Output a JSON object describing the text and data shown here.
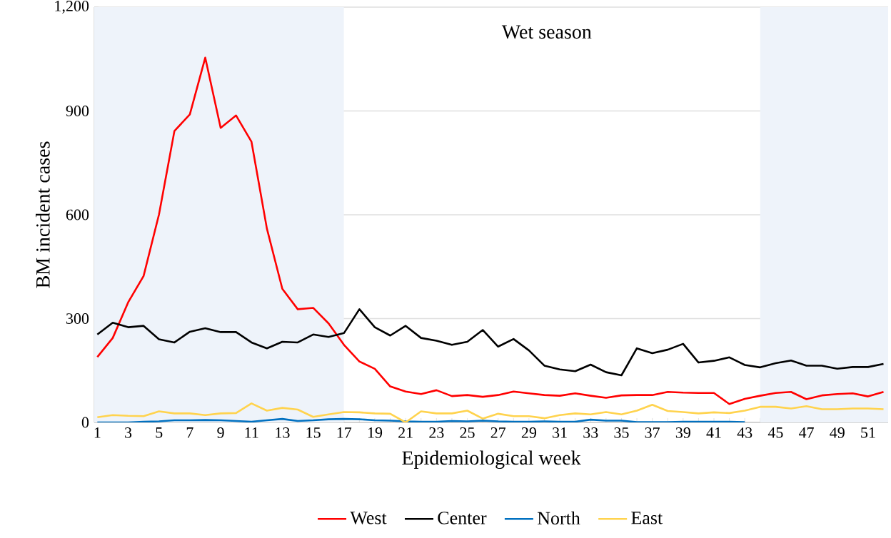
{
  "chart_data": {
    "type": "line",
    "xlabel": "Epidemiological week",
    "ylabel": "BM incident cases",
    "annotations": [
      "Wet season"
    ],
    "x": [
      1,
      2,
      3,
      4,
      5,
      6,
      7,
      8,
      9,
      10,
      11,
      12,
      13,
      14,
      15,
      16,
      17,
      18,
      19,
      20,
      21,
      22,
      23,
      24,
      25,
      26,
      27,
      28,
      29,
      30,
      31,
      32,
      33,
      34,
      35,
      36,
      37,
      38,
      39,
      40,
      41,
      42,
      43,
      44,
      45,
      46,
      47,
      48,
      49,
      50,
      51,
      52
    ],
    "series": [
      {
        "name": "West",
        "color": "#ff0000",
        "values": [
          189,
          244,
          347,
          423,
          601,
          842,
          890,
          1054,
          851,
          887,
          811,
          560,
          386,
          327,
          331,
          286,
          224,
          176,
          155,
          104,
          89,
          82,
          93,
          76,
          79,
          74,
          79,
          89,
          84,
          79,
          77,
          84,
          77,
          71,
          78,
          79,
          79,
          88,
          86,
          85,
          85,
          53,
          68,
          77,
          85,
          88,
          67,
          78,
          82,
          84,
          75,
          88
        ]
      },
      {
        "name": "Center",
        "color": "#000000",
        "values": [
          254,
          288,
          275,
          279,
          240,
          231,
          262,
          272,
          261,
          261,
          231,
          214,
          233,
          231,
          254,
          247,
          258,
          327,
          275,
          251,
          279,
          244,
          236,
          224,
          233,
          267,
          219,
          241,
          208,
          164,
          153,
          148,
          167,
          145,
          136,
          214,
          200,
          210,
          227,
          173,
          178,
          188,
          166,
          159,
          171,
          179,
          164,
          164,
          155,
          160,
          160,
          169
        ]
      },
      {
        "name": "North",
        "color": "#0070c0",
        "values": [
          0,
          0,
          0,
          2,
          3,
          6,
          6,
          7,
          6,
          4,
          2,
          6,
          10,
          4,
          6,
          9,
          10,
          9,
          6,
          5,
          3,
          2,
          2,
          4,
          3,
          5,
          3,
          2,
          2,
          3,
          2,
          2,
          8,
          5,
          5,
          1,
          1,
          1,
          2,
          2,
          2,
          2,
          1,
          null,
          null,
          null,
          null,
          null,
          null,
          null,
          null,
          null
        ]
      },
      {
        "name": "East",
        "color": "#ffd34e",
        "values": [
          15,
          21,
          19,
          18,
          32,
          26,
          26,
          21,
          26,
          27,
          55,
          34,
          42,
          37,
          16,
          23,
          30,
          29,
          26,
          25,
          0,
          32,
          26,
          26,
          34,
          11,
          25,
          18,
          18,
          12,
          21,
          26,
          23,
          30,
          23,
          34,
          51,
          33,
          30,
          26,
          29,
          27,
          34,
          45,
          45,
          40,
          47,
          38,
          38,
          40,
          40,
          38
        ]
      }
    ],
    "xlim": [
      0.8,
      52.3
    ],
    "ylim": [
      0,
      1200
    ],
    "xticks": [
      1,
      {
        "value": 2,
        "label": null
      },
      3,
      {
        "value": 4,
        "label": null
      },
      5,
      {
        "value": 6,
        "label": null
      },
      7,
      {
        "value": 8,
        "label": null
      },
      9,
      {
        "value": 10,
        "label": null
      },
      11,
      {
        "value": 12,
        "label": null
      },
      13,
      {
        "value": 14,
        "label": null
      },
      15,
      {
        "value": 16,
        "label": null
      },
      17,
      {
        "value": 18,
        "label": null
      },
      19,
      {
        "value": 20,
        "label": null
      },
      21,
      {
        "value": 22,
        "label": null
      },
      23,
      {
        "value": 24,
        "label": null
      },
      25,
      {
        "value": 26,
        "label": null
      },
      27,
      {
        "value": 28,
        "label": null
      },
      29,
      {
        "value": 30,
        "label": null
      },
      31,
      {
        "value": 32,
        "label": null
      },
      33,
      {
        "value": 34,
        "label": null
      },
      35,
      {
        "value": 36,
        "label": null
      },
      37,
      {
        "value": 38,
        "label": null
      },
      39,
      {
        "value": 40,
        "label": null
      },
      41,
      {
        "value": 42,
        "label": null
      },
      43,
      {
        "value": 44,
        "label": null
      },
      45,
      {
        "value": 46,
        "label": null
      },
      47,
      {
        "value": 48,
        "label": null
      },
      49,
      {
        "value": 50,
        "label": null
      },
      51,
      {
        "value": 52,
        "label": null
      }
    ],
    "yticks": [
      0,
      300,
      600,
      900,
      {
        "value": 1200,
        "label": "1,200"
      }
    ],
    "bands": [
      {
        "axis": "x",
        "from": 0.8,
        "to": 17,
        "color": "#eef3fa"
      },
      {
        "axis": "x",
        "from": 44,
        "to": 52.3,
        "color": "#eef3fa"
      }
    ],
    "grid": "y",
    "legend": "bottom",
    "marker": "none",
    "line_style": "solid"
  }
}
